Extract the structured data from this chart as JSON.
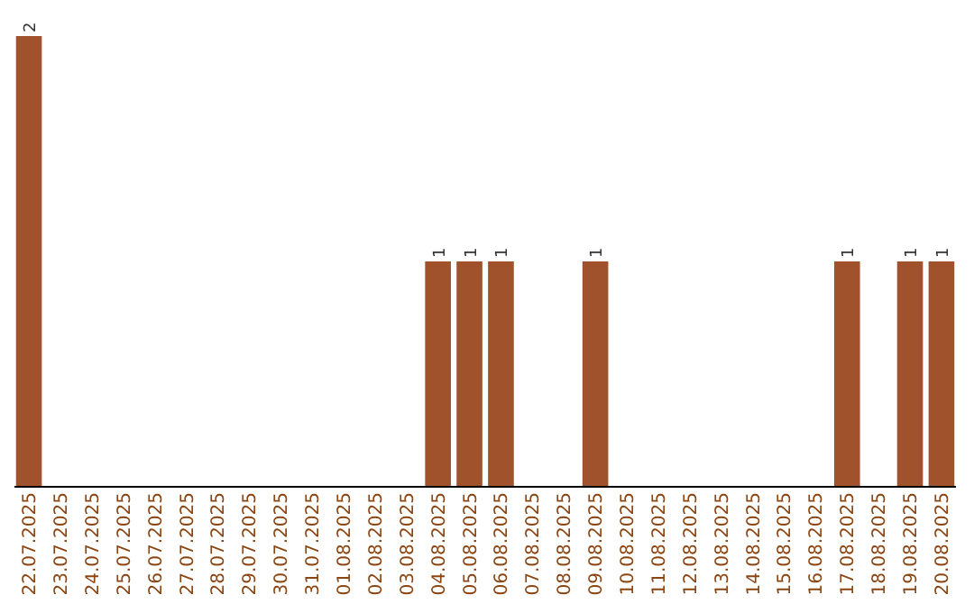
{
  "chart_data": {
    "type": "bar",
    "categories": [
      "22.07.2025",
      "23.07.2025",
      "24.07.2025",
      "25.07.2025",
      "26.07.2025",
      "27.07.2025",
      "28.07.2025",
      "29.07.2025",
      "30.07.2025",
      "31.07.2025",
      "01.08.2025",
      "02.08.2025",
      "03.08.2025",
      "04.08.2025",
      "05.08.2025",
      "06.08.2025",
      "07.08.2025",
      "08.08.2025",
      "09.08.2025",
      "10.08.2025",
      "11.08.2025",
      "12.08.2025",
      "13.08.2025",
      "14.08.2025",
      "15.08.2025",
      "16.08.2025",
      "17.08.2025",
      "18.08.2025",
      "19.08.2025",
      "20.08.2025"
    ],
    "values": [
      2,
      0,
      0,
      0,
      0,
      0,
      0,
      0,
      0,
      0,
      0,
      0,
      0,
      1,
      1,
      1,
      0,
      0,
      1,
      0,
      0,
      0,
      0,
      0,
      0,
      0,
      1,
      0,
      1,
      1
    ],
    "value_labels": [
      "2",
      null,
      null,
      null,
      null,
      null,
      null,
      null,
      null,
      null,
      null,
      null,
      null,
      "1",
      "1",
      "1",
      null,
      null,
      "1",
      null,
      null,
      null,
      null,
      null,
      null,
      null,
      "1",
      null,
      "1",
      "1"
    ],
    "color": "#a0522d"
  }
}
